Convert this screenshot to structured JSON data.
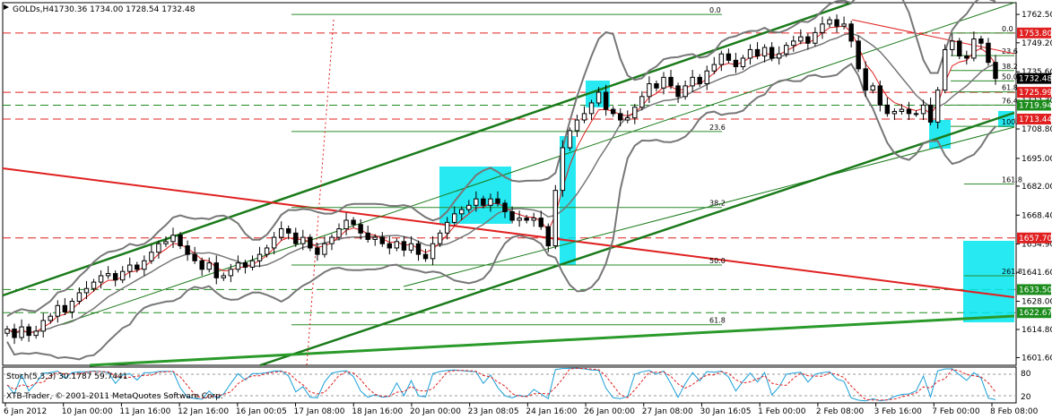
{
  "header": {
    "symbol_tf": "GOLDs,H4",
    "ohlc": "1730.36 1734.00 1728.54 1732.48"
  },
  "indicator": {
    "label": "Stoch(5,3,3) 30.1787 59.7441",
    "levels": [
      "80",
      "20"
    ],
    "copyright": "XTB-Trader, © 2001-2011 MetaQuotes Software Corp."
  },
  "price_tags": [
    {
      "price": 1753.8,
      "text": "1753.80",
      "color": "#e02020"
    },
    {
      "price": 1732.48,
      "text": "1732.48",
      "color": "#000000"
    },
    {
      "price": 1725.99,
      "text": "1725.99",
      "color": "#e02020"
    },
    {
      "price": 1719.94,
      "text": "1719.94",
      "color": "#1c8c1c"
    },
    {
      "price": 1713.44,
      "text": "1713.44",
      "color": "#e02020"
    },
    {
      "price": 1657.7,
      "text": "1657.70",
      "color": "#e02020"
    },
    {
      "price": 1633.5,
      "text": "1633.50",
      "color": "#1c8c1c"
    },
    {
      "price": 1622.67,
      "text": "1622.67",
      "color": "#1c8c1c"
    }
  ],
  "fib_labels": [
    {
      "text": "0.0",
      "price": 1762.5
    },
    {
      "text": "23.6",
      "price": 1707.6
    },
    {
      "text": "38.2",
      "price": 1672.0
    },
    {
      "text": "50.0",
      "price": 1645.0
    },
    {
      "text": "61.8",
      "price": 1617.0
    },
    {
      "text": "0.0",
      "price": 1753.8
    },
    {
      "text": "23.6",
      "price": 1743.2
    },
    {
      "text": "38.2",
      "price": 1736.2
    },
    {
      "text": "50.0",
      "price": 1731.3
    },
    {
      "text": "61.8",
      "price": 1726.2
    },
    {
      "text": "76.4",
      "price": 1720.0
    },
    {
      "text": "100.0",
      "price": 1710.0
    },
    {
      "text": "161.8",
      "price": 1683.0
    },
    {
      "text": "261.8",
      "price": 1640.0
    }
  ],
  "chart_data": {
    "type": "candlestick",
    "y_axis": {
      "min": 1598.0,
      "max": 1768.0,
      "ticks": [
        "1762.50",
        "1749.20",
        "1735.60",
        "1722.30",
        "1708.80",
        "1695.00",
        "1682.00",
        "1668.40",
        "1654.90",
        "1641.60",
        "1628.00",
        "1614.80",
        "1601.60"
      ]
    },
    "x_ticks": [
      "6 Jan 2012",
      "10 Jan 00:00",
      "11 Jan 16:00",
      "12 Jan 16:00",
      "16 Jan 00:05",
      "17 Jan 08:00",
      "18 Jan 16:00",
      "20 Jan 00:00",
      "23 Jan 08:05",
      "24 Jan 16:00",
      "26 Jan 00:00",
      "27 Jan 08:00",
      "30 Jan 16:05",
      "1 Feb 00:00",
      "2 Feb 08:00",
      "3 Feb 16:00",
      "7 Feb 00:00",
      "8 Feb 08:00"
    ],
    "close_series": [
      1615,
      1611,
      1616,
      1612,
      1614,
      1619,
      1621,
      1626,
      1623,
      1628,
      1632,
      1634,
      1637,
      1640,
      1641,
      1638,
      1642,
      1645,
      1643,
      1647,
      1651,
      1655,
      1656,
      1659,
      1654,
      1650,
      1647,
      1643,
      1646,
      1639,
      1640,
      1643,
      1646,
      1644,
      1647,
      1650,
      1653,
      1658,
      1662,
      1660,
      1655,
      1658,
      1653,
      1650,
      1655,
      1658,
      1662,
      1666,
      1664,
      1660,
      1657,
      1658,
      1655,
      1653,
      1656,
      1652,
      1655,
      1650,
      1648,
      1655,
      1660,
      1665,
      1669,
      1671,
      1673,
      1676,
      1673,
      1676,
      1674,
      1670,
      1666,
      1667,
      1666,
      1667,
      1663,
      1654,
      1680,
      1700,
      1708,
      1713,
      1716,
      1721,
      1726,
      1718,
      1716,
      1713,
      1714,
      1719,
      1724,
      1730,
      1728,
      1733,
      1729,
      1724,
      1729,
      1733,
      1730,
      1736,
      1739,
      1744,
      1741,
      1738,
      1742,
      1746,
      1743,
      1747,
      1742,
      1744,
      1748,
      1750,
      1752,
      1749,
      1754,
      1758,
      1760,
      1757,
      1758,
      1750,
      1737,
      1727,
      1729,
      1720,
      1716,
      1717,
      1718,
      1716,
      1716,
      1720,
      1712,
      1727,
      1746,
      1750,
      1743,
      1742,
      1751,
      1749,
      1740,
      1732.48
    ]
  }
}
